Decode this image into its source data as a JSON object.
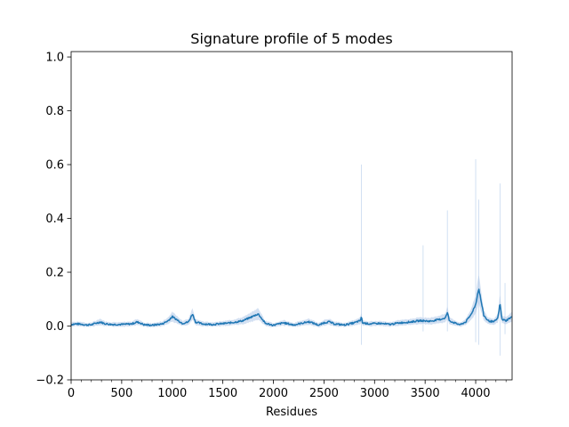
{
  "chart_data": {
    "type": "line",
    "title": "Signature profile of 5 modes",
    "xlabel": "Residues",
    "ylabel": "",
    "xlim": [
      0,
      4360
    ],
    "ylim": [
      -0.2,
      1.02
    ],
    "x_ticks": [
      0,
      500,
      1000,
      1500,
      2000,
      2500,
      3000,
      3500,
      4000
    ],
    "x_tick_labels": [
      "0",
      "500",
      "1000",
      "1500",
      "2000",
      "2500",
      "3000",
      "3500",
      "4000"
    ],
    "y_ticks": [
      -0.2,
      0.0,
      0.2,
      0.4,
      0.6,
      0.8,
      1.0
    ],
    "y_tick_labels": [
      "−0.2",
      "0.0",
      "0.2",
      "0.4",
      "0.6",
      "0.8",
      "1.0"
    ],
    "grid": false,
    "series": [
      {
        "color": "#1f77b4",
        "band_color": "#aec7e8",
        "profile": [
          [
            0,
            0.006
          ],
          [
            50,
            0.008
          ],
          [
            100,
            0.007
          ],
          [
            150,
            0.004
          ],
          [
            200,
            0.005
          ],
          [
            250,
            0.011
          ],
          [
            290,
            0.015
          ],
          [
            330,
            0.009
          ],
          [
            400,
            0.006
          ],
          [
            500,
            0.006
          ],
          [
            600,
            0.008
          ],
          [
            650,
            0.015
          ],
          [
            680,
            0.012
          ],
          [
            720,
            0.005
          ],
          [
            800,
            0.003
          ],
          [
            900,
            0.008
          ],
          [
            960,
            0.02
          ],
          [
            1000,
            0.035
          ],
          [
            1040,
            0.025
          ],
          [
            1100,
            0.01
          ],
          [
            1160,
            0.015
          ],
          [
            1200,
            0.045
          ],
          [
            1230,
            0.015
          ],
          [
            1300,
            0.008
          ],
          [
            1400,
            0.006
          ],
          [
            1500,
            0.009
          ],
          [
            1600,
            0.013
          ],
          [
            1700,
            0.02
          ],
          [
            1760,
            0.03
          ],
          [
            1820,
            0.04
          ],
          [
            1850,
            0.045
          ],
          [
            1880,
            0.03
          ],
          [
            1920,
            0.01
          ],
          [
            2000,
            0.003
          ],
          [
            2100,
            0.012
          ],
          [
            2150,
            0.008
          ],
          [
            2200,
            0.004
          ],
          [
            2300,
            0.012
          ],
          [
            2350,
            0.016
          ],
          [
            2400,
            0.01
          ],
          [
            2450,
            0.003
          ],
          [
            2500,
            0.012
          ],
          [
            2550,
            0.016
          ],
          [
            2600,
            0.008
          ],
          [
            2700,
            0.004
          ],
          [
            2800,
            0.012
          ],
          [
            2860,
            0.02
          ],
          [
            2870,
            0.035
          ],
          [
            2880,
            0.012
          ],
          [
            2950,
            0.008
          ],
          [
            3050,
            0.01
          ],
          [
            3150,
            0.006
          ],
          [
            3250,
            0.012
          ],
          [
            3350,
            0.015
          ],
          [
            3450,
            0.02
          ],
          [
            3550,
            0.018
          ],
          [
            3650,
            0.025
          ],
          [
            3700,
            0.03
          ],
          [
            3720,
            0.05
          ],
          [
            3740,
            0.02
          ],
          [
            3800,
            0.01
          ],
          [
            3850,
            0.005
          ],
          [
            3900,
            0.015
          ],
          [
            3950,
            0.04
          ],
          [
            4000,
            0.08
          ],
          [
            4030,
            0.14
          ],
          [
            4050,
            0.1
          ],
          [
            4080,
            0.04
          ],
          [
            4120,
            0.02
          ],
          [
            4180,
            0.015
          ],
          [
            4220,
            0.03
          ],
          [
            4240,
            0.085
          ],
          [
            4260,
            0.025
          ],
          [
            4300,
            0.02
          ],
          [
            4340,
            0.03
          ],
          [
            4360,
            0.035
          ]
        ],
        "band_spikes": [
          [
            2870,
            0.6,
            -0.07
          ],
          [
            3480,
            0.3,
            -0.02
          ],
          [
            3720,
            0.43,
            -0.02
          ],
          [
            4000,
            0.62,
            -0.06
          ],
          [
            4030,
            0.47,
            -0.07
          ],
          [
            4240,
            0.53,
            -0.11
          ],
          [
            4290,
            0.16,
            -0.03
          ]
        ]
      }
    ]
  }
}
